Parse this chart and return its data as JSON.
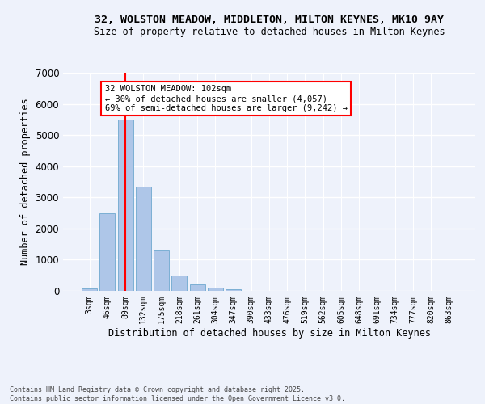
{
  "title_line1": "32, WOLSTON MEADOW, MIDDLETON, MILTON KEYNES, MK10 9AY",
  "title_line2": "Size of property relative to detached houses in Milton Keynes",
  "xlabel": "Distribution of detached houses by size in Milton Keynes",
  "ylabel": "Number of detached properties",
  "bar_labels": [
    "3sqm",
    "46sqm",
    "89sqm",
    "132sqm",
    "175sqm",
    "218sqm",
    "261sqm",
    "304sqm",
    "347sqm",
    "390sqm",
    "433sqm",
    "476sqm",
    "519sqm",
    "562sqm",
    "605sqm",
    "648sqm",
    "691sqm",
    "734sqm",
    "777sqm",
    "820sqm",
    "863sqm"
  ],
  "bar_values": [
    90,
    2500,
    5500,
    3350,
    1300,
    480,
    220,
    100,
    40,
    5,
    0,
    0,
    0,
    0,
    0,
    0,
    0,
    0,
    0,
    0,
    0
  ],
  "bar_color": "#aec6e8",
  "bar_edgecolor": "#7bafd4",
  "vline_x": 2,
  "vline_color": "red",
  "ylim": [
    0,
    7000
  ],
  "yticks": [
    0,
    1000,
    2000,
    3000,
    4000,
    5000,
    6000,
    7000
  ],
  "annotation_text": "32 WOLSTON MEADOW: 102sqm\n← 30% of detached houses are smaller (4,057)\n69% of semi-detached houses are larger (9,242) →",
  "annotation_box_color": "white",
  "annotation_box_edgecolor": "red",
  "footer_line1": "Contains HM Land Registry data © Crown copyright and database right 2025.",
  "footer_line2": "Contains public sector information licensed under the Open Government Licence v3.0.",
  "background_color": "#eef2fb",
  "grid_color": "white"
}
